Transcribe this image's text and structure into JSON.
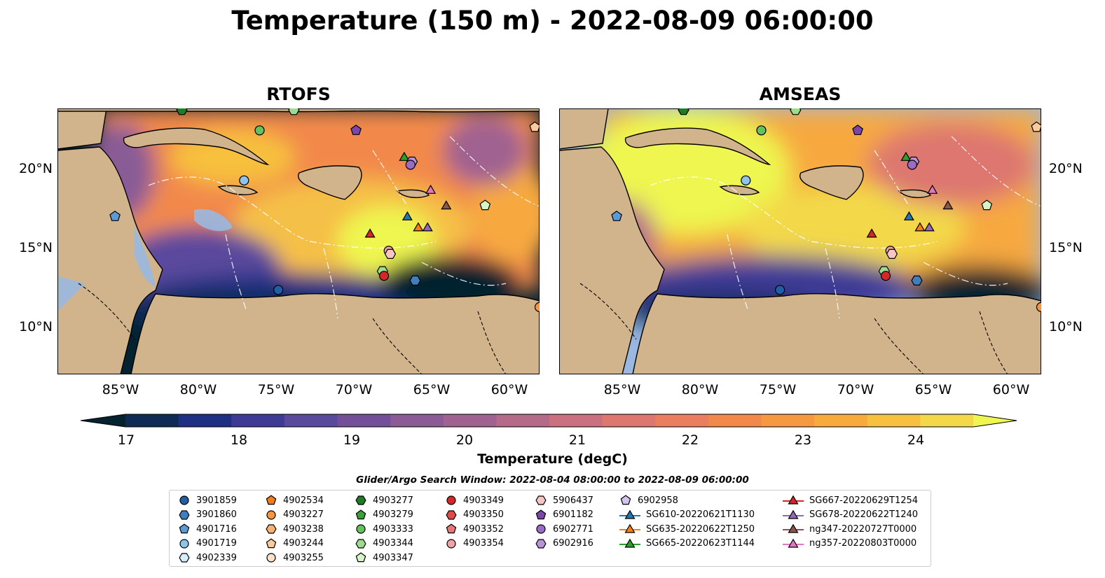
{
  "title": "Temperature (150 m) - 2022-08-09 06:00:00",
  "panels": [
    {
      "title": "RTOFS",
      "variant": "rtofs"
    },
    {
      "title": "AMSEAS",
      "variant": "amseas"
    }
  ],
  "lat_labels": [
    "20°N",
    "15°N",
    "10°N"
  ],
  "lon_labels": [
    "85°W",
    "80°W",
    "75°W",
    "70°W",
    "65°W",
    "60°W"
  ],
  "map_extent": {
    "lon": [
      -89,
      -58
    ],
    "lat": [
      7,
      24
    ]
  },
  "colorbar": {
    "label": "Temperature (degC)",
    "ticks": [
      "17",
      "18",
      "19",
      "20",
      "21",
      "22",
      "23",
      "24"
    ],
    "range": [
      17,
      24.5
    ],
    "colors": [
      "#04222f",
      "#0e2a55",
      "#1f3084",
      "#3d3b96",
      "#5a4a9d",
      "#734f9a",
      "#8a5b95",
      "#a06290",
      "#b66a8a",
      "#cb7080",
      "#dd7770",
      "#ea7e5e",
      "#f2894b",
      "#f79941",
      "#f8ab3c",
      "#f7c03e",
      "#f3d94a",
      "#eef64f"
    ]
  },
  "search_window": "Glider/Argo Search Window: 2022-08-04 08:00:00 to 2022-08-09 06:00:00",
  "legend": [
    [
      {
        "label": "3901859",
        "marker": "circle",
        "color": "#1f5fa6"
      },
      {
        "label": "3901860",
        "marker": "hexagon",
        "color": "#3f7fbf"
      },
      {
        "label": "4901716",
        "marker": "pentagon",
        "color": "#5b9bd5"
      },
      {
        "label": "4901719",
        "marker": "circle",
        "color": "#8fc4ea"
      },
      {
        "label": "4902339",
        "marker": "hexagon",
        "color": "#d9eefb"
      }
    ],
    [
      {
        "label": "4902534",
        "marker": "pentagon",
        "color": "#f07d16"
      },
      {
        "label": "4903227",
        "marker": "circle",
        "color": "#f7963d"
      },
      {
        "label": "4903238",
        "marker": "hexagon",
        "color": "#f9b070"
      },
      {
        "label": "4903244",
        "marker": "pentagon",
        "color": "#fcc99b"
      },
      {
        "label": "4903255",
        "marker": "circle",
        "color": "#fde2c7"
      }
    ],
    [
      {
        "label": "4903277",
        "marker": "hexagon",
        "color": "#1d7d24"
      },
      {
        "label": "4903279",
        "marker": "pentagon",
        "color": "#3a9e3a"
      },
      {
        "label": "4903333",
        "marker": "circle",
        "color": "#63c25e"
      },
      {
        "label": "4903344",
        "marker": "hexagon",
        "color": "#9ddc8f"
      },
      {
        "label": "4903347",
        "marker": "pentagon",
        "color": "#d5f5c8"
      }
    ],
    [
      {
        "label": "4903349",
        "marker": "circle",
        "color": "#d62728"
      },
      {
        "label": "4903350",
        "marker": "hexagon",
        "color": "#e04a48"
      },
      {
        "label": "4903352",
        "marker": "pentagon",
        "color": "#e97676"
      },
      {
        "label": "4903354",
        "marker": "circle",
        "color": "#f3a3a3"
      }
    ],
    [
      {
        "label": "5906437",
        "marker": "hexagon",
        "color": "#f8c4c4"
      },
      {
        "label": "6901182",
        "marker": "pentagon",
        "color": "#7b46a8"
      },
      {
        "label": "6902771",
        "marker": "circle",
        "color": "#9a6cc4"
      },
      {
        "label": "6902916",
        "marker": "hexagon",
        "color": "#b894d8"
      }
    ],
    [
      {
        "label": "6902958",
        "marker": "pentagon",
        "color": "#d6c2ee"
      },
      {
        "label": "SG610-20220621T1130",
        "marker": "triangle-line",
        "color": "#1f77b4"
      },
      {
        "label": "SG635-20220622T1250",
        "marker": "triangle-line",
        "color": "#ff7f0e"
      },
      {
        "label": "SG665-20220623T1144",
        "marker": "triangle-line",
        "color": "#2ca02c"
      }
    ],
    [
      {
        "label": "SG667-20220629T1254",
        "marker": "triangle-line",
        "color": "#d62728"
      },
      {
        "label": "SG678-20220622T1240",
        "marker": "triangle-line",
        "color": "#9467bd"
      },
      {
        "label": "ng347-20220727T0000",
        "marker": "triangle-line",
        "color": "#8c564b"
      },
      {
        "label": "ng357-20220803T0000",
        "marker": "triangle-line",
        "color": "#e377c2"
      }
    ]
  ],
  "platforms": [
    {
      "lon": -81.0,
      "lat": 23.9,
      "marker": "hexagon",
      "color": "#1d7d24"
    },
    {
      "lon": -76.0,
      "lat": 22.6,
      "marker": "circle",
      "color": "#63c25e"
    },
    {
      "lon": -73.8,
      "lat": 23.9,
      "marker": "hexagon",
      "color": "#9ddc8f"
    },
    {
      "lon": -69.8,
      "lat": 22.6,
      "marker": "pentagon",
      "color": "#7b46a8"
    },
    {
      "lon": -58.3,
      "lat": 22.8,
      "marker": "pentagon",
      "color": "#fcc99b"
    },
    {
      "lon": -66.7,
      "lat": 20.9,
      "marker": "triangle",
      "color": "#2ca02c"
    },
    {
      "lon": -66.2,
      "lat": 20.6,
      "marker": "hexagon",
      "color": "#b894d8"
    },
    {
      "lon": -66.3,
      "lat": 20.4,
      "marker": "circle",
      "color": "#9a6cc4"
    },
    {
      "lon": -77.0,
      "lat": 19.4,
      "marker": "circle",
      "color": "#8fc4ea"
    },
    {
      "lon": -65.0,
      "lat": 18.8,
      "marker": "triangle",
      "color": "#e377c2"
    },
    {
      "lon": -85.3,
      "lat": 17.1,
      "marker": "pentagon",
      "color": "#5b9bd5"
    },
    {
      "lon": -66.5,
      "lat": 17.1,
      "marker": "triangle",
      "color": "#1f77b4"
    },
    {
      "lon": -64.0,
      "lat": 17.8,
      "marker": "triangle",
      "color": "#8c564b"
    },
    {
      "lon": -61.5,
      "lat": 17.8,
      "marker": "pentagon",
      "color": "#d5f5c8"
    },
    {
      "lon": -65.8,
      "lat": 16.4,
      "marker": "triangle",
      "color": "#ff7f0e"
    },
    {
      "lon": -65.2,
      "lat": 16.4,
      "marker": "triangle",
      "color": "#9467bd"
    },
    {
      "lon": -68.9,
      "lat": 16.0,
      "marker": "triangle",
      "color": "#d62728"
    },
    {
      "lon": -67.7,
      "lat": 14.9,
      "marker": "circle",
      "color": "#f3a3a3"
    },
    {
      "lon": -67.6,
      "lat": 14.7,
      "marker": "hexagon",
      "color": "#f8c4c4"
    },
    {
      "lon": -68.1,
      "lat": 13.6,
      "marker": "hexagon",
      "color": "#9ddc8f"
    },
    {
      "lon": -68.0,
      "lat": 13.3,
      "marker": "circle",
      "color": "#d62728"
    },
    {
      "lon": -74.8,
      "lat": 12.4,
      "marker": "circle",
      "color": "#1f5fa6"
    },
    {
      "lon": -66.0,
      "lat": 13.0,
      "marker": "hexagon",
      "color": "#3f7fbf"
    },
    {
      "lon": -58.0,
      "lat": 11.3,
      "marker": "circle",
      "color": "#f7963d"
    }
  ]
}
